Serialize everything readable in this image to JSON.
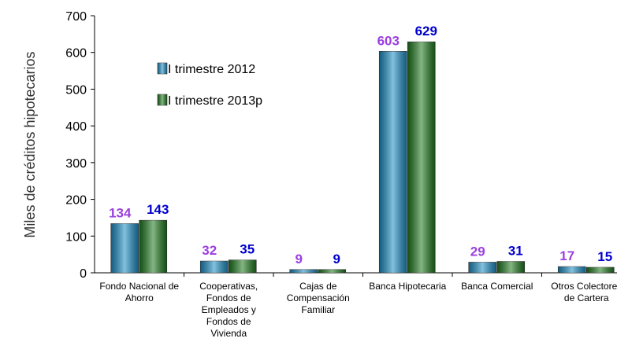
{
  "chart_data": {
    "type": "bar",
    "y_label": "Miles de créditos hipotecarios",
    "categories": [
      "Fondo Nacional de Ahorro",
      "Cooperativas, Fondos de Empleados y Fondos de Vivienda",
      "Cajas de Compensación Familiar",
      "Banca Hipotecaria",
      "Banca Comercial",
      "Otros Colectores de Cartera"
    ],
    "series": [
      {
        "name": "I trimestre 2012",
        "color": "#1e8fc6",
        "value_label_color": "#9b3fe0",
        "values": [
          134,
          32,
          9,
          603,
          29,
          17
        ]
      },
      {
        "name": "I trimestre 2013p",
        "color": "#1f7a1f",
        "value_label_color": "#0000cc",
        "values": [
          143,
          35,
          9,
          629,
          31,
          15
        ]
      }
    ],
    "ylim": [
      0,
      700
    ],
    "yticks": [
      0,
      100,
      200,
      300,
      400,
      500,
      600,
      700
    ]
  }
}
